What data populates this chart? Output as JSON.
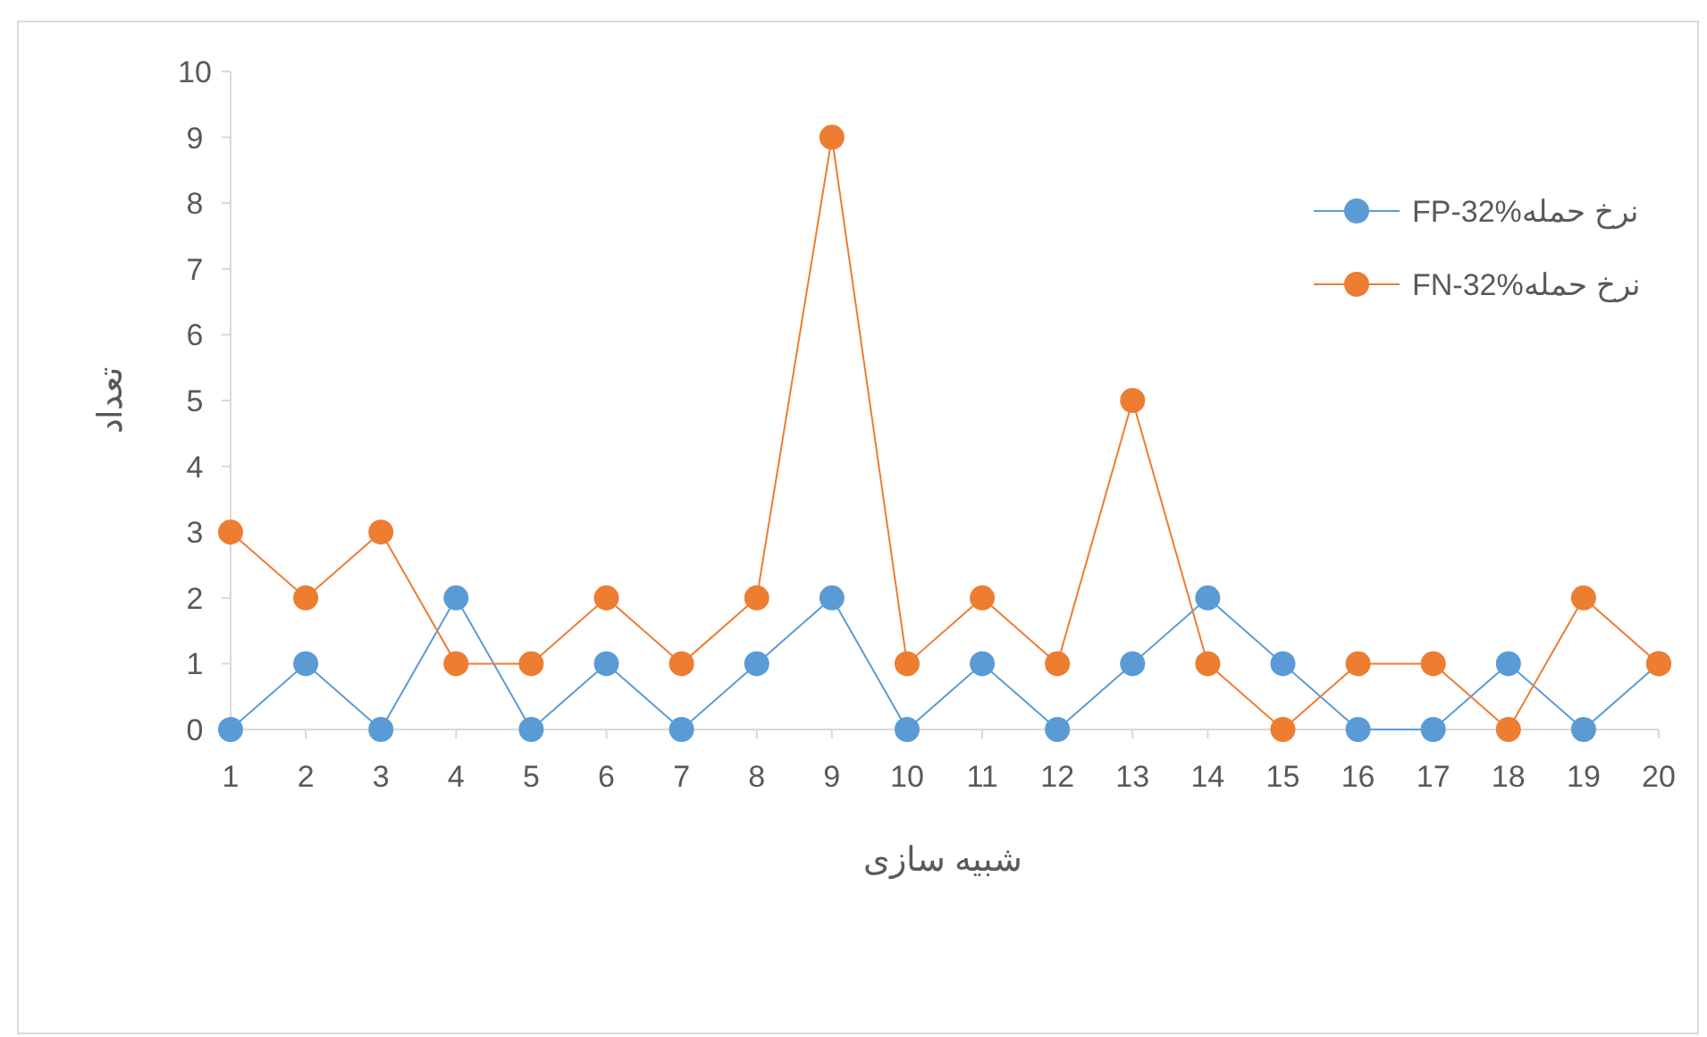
{
  "chart_data": {
    "type": "line",
    "xlabel": "شبیه سازی",
    "ylabel": "تعداد",
    "categories": [
      "1",
      "2",
      "3",
      "4",
      "5",
      "6",
      "7",
      "8",
      "9",
      "10",
      "11",
      "12",
      "13",
      "14",
      "15",
      "16",
      "17",
      "18",
      "19",
      "20"
    ],
    "series": [
      {
        "name": "FP-32%نرخ حمله",
        "color": "#5b9bd5",
        "values": [
          0,
          1,
          0,
          2,
          0,
          1,
          0,
          1,
          2,
          0,
          1,
          0,
          1,
          2,
          1,
          0,
          0,
          1,
          0,
          1
        ]
      },
      {
        "name": "FN-32%نرخ حمله",
        "color": "#ed7d31",
        "values": [
          3,
          2,
          3,
          1,
          1,
          2,
          1,
          2,
          9,
          1,
          2,
          1,
          5,
          1,
          0,
          1,
          1,
          0,
          2,
          1
        ]
      }
    ],
    "ylim": [
      0,
      10
    ],
    "yticks": [
      0,
      1,
      2,
      3,
      4,
      5,
      6,
      7,
      8,
      9,
      10
    ],
    "grid": false,
    "legend": "right",
    "marker": "circle",
    "line_style": "solid"
  }
}
